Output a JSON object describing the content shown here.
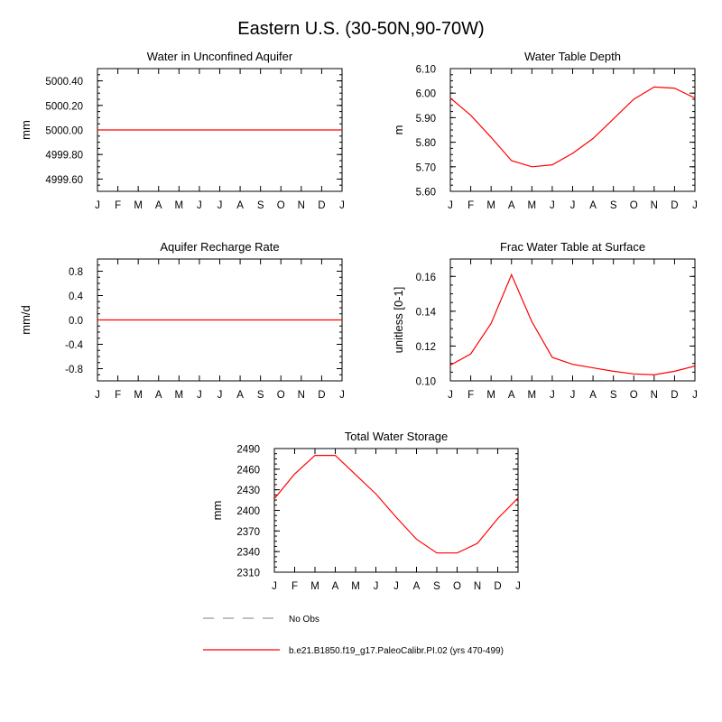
{
  "figure": {
    "title": "Eastern U.S. (30-50N,90-70W)"
  },
  "legend": {
    "entries": [
      {
        "label": "No Obs",
        "color": "#999999",
        "style": "dashed"
      },
      {
        "label": "b.e21.B1850.f19_g17.PaleoCalibr.PI.02 (yrs 470-499)",
        "color": "#ff0000",
        "style": "solid"
      }
    ]
  },
  "chart_data": [
    {
      "type": "line",
      "title": "Water in Unconfined Aquifer",
      "xlabel": "",
      "ylabel": "mm",
      "categories": [
        "J",
        "F",
        "M",
        "A",
        "M",
        "J",
        "J",
        "A",
        "S",
        "O",
        "N",
        "D",
        "J"
      ],
      "ylim": [
        4999.5,
        5000.5
      ],
      "yticks": [
        "4999.60",
        "4999.80",
        "5000.00",
        "5000.20",
        "5000.40"
      ],
      "yminor_step": 0.05,
      "series": [
        {
          "color": "#ff0000",
          "values": [
            5000,
            5000,
            5000,
            5000,
            5000,
            5000,
            5000,
            5000,
            5000,
            5000,
            5000,
            5000,
            5000
          ]
        }
      ]
    },
    {
      "type": "line",
      "title": "Water Table Depth",
      "xlabel": "",
      "ylabel": "m",
      "categories": [
        "J",
        "F",
        "M",
        "A",
        "M",
        "J",
        "J",
        "A",
        "S",
        "O",
        "N",
        "D",
        "J"
      ],
      "ylim": [
        5.6,
        6.1
      ],
      "yticks": [
        "5.60",
        "5.70",
        "5.80",
        "5.90",
        "6.00",
        "6.10"
      ],
      "yminor_step": 0.025,
      "series": [
        {
          "color": "#ff0000",
          "values": [
            5.98,
            5.91,
            5.82,
            5.725,
            5.7,
            5.708,
            5.755,
            5.815,
            5.895,
            5.975,
            6.025,
            6.02,
            5.98
          ]
        }
      ]
    },
    {
      "type": "line",
      "title": "Aquifer Recharge Rate",
      "xlabel": "",
      "ylabel": "mm/d",
      "categories": [
        "J",
        "F",
        "M",
        "A",
        "M",
        "J",
        "J",
        "A",
        "S",
        "O",
        "N",
        "D",
        "J"
      ],
      "ylim": [
        -1.0,
        1.0
      ],
      "yticks": [
        "-0.8",
        "-0.4",
        "0.0",
        "0.4",
        "0.8"
      ],
      "yminor_step": 0.1,
      "series": [
        {
          "color": "#ff0000",
          "values": [
            0,
            0,
            0,
            0,
            0,
            0,
            0,
            0,
            0,
            0,
            0,
            0,
            0
          ]
        }
      ]
    },
    {
      "type": "line",
      "title": "Frac Water Table at Surface",
      "xlabel": "",
      "ylabel": "unitless [0-1]",
      "categories": [
        "J",
        "F",
        "M",
        "A",
        "M",
        "J",
        "J",
        "A",
        "S",
        "O",
        "N",
        "D",
        "J"
      ],
      "ylim": [
        0.1,
        0.17
      ],
      "yticks": [
        "0.10",
        "0.12",
        "0.14",
        "0.16"
      ],
      "yminor_step": 0.005,
      "series": [
        {
          "color": "#ff0000",
          "values": [
            0.109,
            0.1155,
            0.133,
            0.161,
            0.134,
            0.1135,
            0.1095,
            0.1075,
            0.1055,
            0.104,
            0.1035,
            0.1055,
            0.1085
          ]
        }
      ]
    },
    {
      "type": "line",
      "title": "Total Water Storage",
      "xlabel": "",
      "ylabel": "mm",
      "categories": [
        "J",
        "F",
        "M",
        "A",
        "M",
        "J",
        "J",
        "A",
        "S",
        "O",
        "N",
        "D",
        "J"
      ],
      "ylim": [
        2310,
        2490
      ],
      "yticks": [
        "2310",
        "2340",
        "2370",
        "2400",
        "2430",
        "2460",
        "2490"
      ],
      "yminor_step": 7.5,
      "series": [
        {
          "color": "#ff0000",
          "values": [
            2417,
            2453,
            2480,
            2480,
            2452,
            2424,
            2390,
            2358,
            2338,
            2338,
            2352,
            2388,
            2418
          ]
        }
      ]
    }
  ]
}
